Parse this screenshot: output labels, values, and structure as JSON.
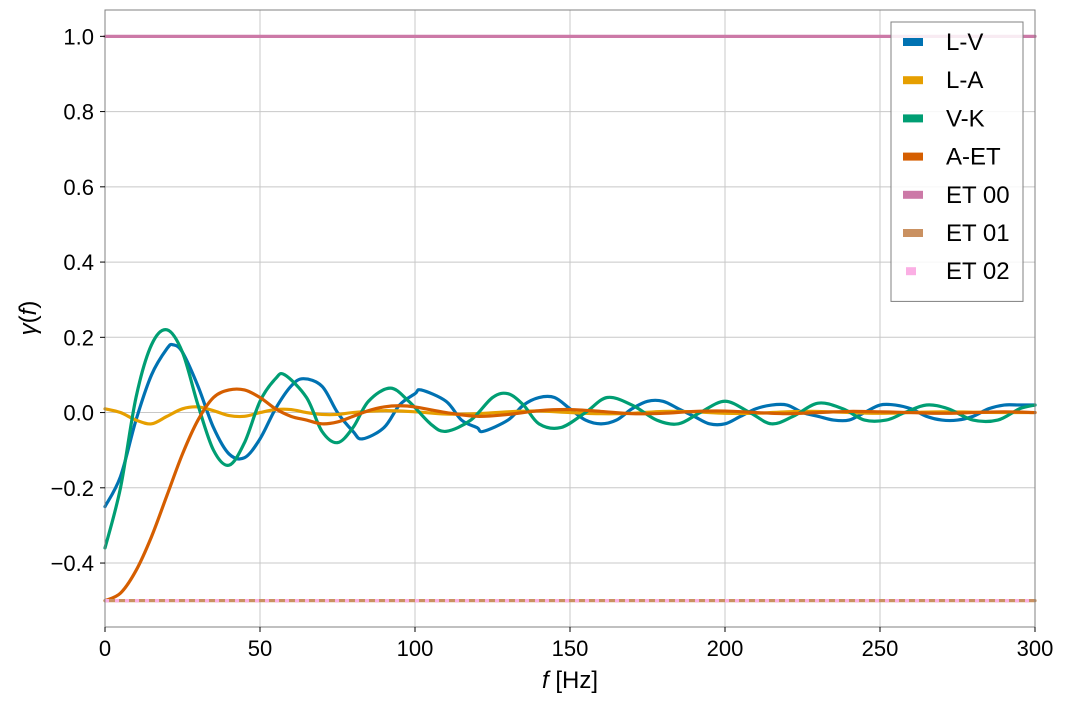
{
  "chart_data": {
    "type": "line",
    "xlabel": "f [Hz]",
    "ylabel": "γ(f)",
    "xlim": [
      0,
      300
    ],
    "ylim": [
      -0.57,
      1.07
    ],
    "x_ticks": [
      0,
      50,
      100,
      150,
      200,
      250,
      300
    ],
    "x_tick_labels": [
      "0",
      "50",
      "100",
      "150",
      "200",
      "250",
      "300"
    ],
    "y_ticks": [
      -0.4,
      -0.2,
      0.0,
      0.2,
      0.4,
      0.6,
      0.8,
      1.0
    ],
    "y_tick_labels": [
      "−0.4",
      "−0.2",
      "0.0",
      "0.2",
      "0.4",
      "0.6",
      "0.8",
      "1.0"
    ],
    "grid": true,
    "legend_position": "top-right",
    "series": [
      {
        "name": "L-V",
        "color": "#0072B2",
        "style": "solid",
        "x": [
          0,
          5,
          10,
          15,
          20,
          22,
          25,
          30,
          35,
          40,
          45,
          50,
          55,
          60,
          64,
          70,
          75,
          80,
          83,
          90,
          95,
          100,
          102,
          110,
          115,
          120,
          122,
          130,
          135,
          140,
          145,
          150,
          155,
          160,
          165,
          170,
          175,
          180,
          185,
          190,
          195,
          200,
          205,
          210,
          215,
          220,
          225,
          230,
          235,
          240,
          245,
          250,
          255,
          260,
          265,
          270,
          275,
          280,
          285,
          290,
          295,
          300
        ],
        "y": [
          -0.25,
          -0.17,
          -0.02,
          0.1,
          0.17,
          0.18,
          0.16,
          0.07,
          -0.04,
          -0.11,
          -0.12,
          -0.07,
          0.01,
          0.07,
          0.09,
          0.07,
          0.0,
          -0.05,
          -0.07,
          -0.04,
          0.02,
          0.05,
          0.06,
          0.03,
          -0.02,
          -0.04,
          -0.05,
          -0.02,
          0.02,
          0.04,
          0.04,
          0.01,
          -0.02,
          -0.03,
          -0.02,
          0.01,
          0.03,
          0.03,
          0.01,
          -0.01,
          -0.03,
          -0.03,
          -0.01,
          0.01,
          0.02,
          0.02,
          0.0,
          -0.01,
          -0.02,
          -0.02,
          0.0,
          0.02,
          0.02,
          0.01,
          -0.01,
          -0.02,
          -0.02,
          -0.01,
          0.01,
          0.02,
          0.02,
          0.02
        ]
      },
      {
        "name": "L-A",
        "color": "#E69F00",
        "style": "solid",
        "x": [
          0,
          5,
          10,
          15,
          20,
          25,
          30,
          35,
          40,
          45,
          50,
          55,
          60,
          65,
          70,
          75,
          80,
          90,
          100,
          110,
          120,
          130,
          140,
          150,
          160,
          170,
          180,
          190,
          200,
          210,
          220,
          230,
          240,
          250,
          260,
          270,
          280,
          290,
          300
        ],
        "y": [
          0.01,
          0.0,
          -0.02,
          -0.03,
          -0.01,
          0.01,
          0.015,
          0.005,
          -0.008,
          -0.01,
          0.0,
          0.008,
          0.008,
          0.0,
          -0.005,
          -0.005,
          0.0,
          0.005,
          0.002,
          -0.004,
          -0.003,
          0.002,
          0.004,
          0.0,
          -0.003,
          -0.002,
          0.003,
          0.002,
          -0.002,
          -0.002,
          0.002,
          0.003,
          0.0,
          -0.002,
          0.0,
          0.002,
          0.001,
          0.0,
          0.0
        ]
      },
      {
        "name": "V-K",
        "color": "#009E73",
        "style": "solid",
        "x": [
          0,
          5,
          10,
          15,
          20,
          25,
          30,
          35,
          40,
          45,
          50,
          55,
          58,
          65,
          70,
          75,
          80,
          85,
          92,
          98,
          105,
          110,
          118,
          125,
          130,
          135,
          140,
          147,
          155,
          162,
          170,
          178,
          185,
          192,
          200,
          208,
          215,
          222,
          230,
          238,
          245,
          252,
          258,
          265,
          272,
          280,
          288,
          295,
          300
        ],
        "y": [
          -0.36,
          -0.2,
          0.04,
          0.18,
          0.22,
          0.16,
          0.02,
          -0.1,
          -0.14,
          -0.08,
          0.03,
          0.09,
          0.1,
          0.04,
          -0.05,
          -0.08,
          -0.04,
          0.03,
          0.065,
          0.03,
          -0.03,
          -0.05,
          -0.02,
          0.04,
          0.05,
          0.02,
          -0.03,
          -0.04,
          0.0,
          0.04,
          0.02,
          -0.02,
          -0.03,
          0.0,
          0.03,
          0.0,
          -0.03,
          -0.01,
          0.025,
          0.01,
          -0.02,
          -0.02,
          0.0,
          0.02,
          0.01,
          -0.02,
          -0.02,
          0.01,
          0.02
        ]
      },
      {
        "name": "A-ET",
        "color": "#D55E00",
        "style": "solid",
        "x": [
          0,
          5,
          10,
          15,
          20,
          25,
          30,
          35,
          40,
          45,
          50,
          55,
          60,
          65,
          70,
          75,
          80,
          85,
          90,
          95,
          100,
          110,
          120,
          130,
          140,
          150,
          160,
          170,
          180,
          190,
          200,
          210,
          220,
          230,
          240,
          250,
          260,
          270,
          280,
          290,
          300
        ],
        "y": [
          -0.5,
          -0.48,
          -0.42,
          -0.33,
          -0.22,
          -0.11,
          -0.02,
          0.04,
          0.06,
          0.06,
          0.04,
          0.01,
          -0.01,
          -0.02,
          -0.03,
          -0.025,
          -0.01,
          0.005,
          0.015,
          0.018,
          0.015,
          0.0,
          -0.01,
          -0.005,
          0.005,
          0.008,
          0.003,
          -0.003,
          -0.002,
          0.003,
          0.004,
          0.0,
          -0.003,
          0.0,
          0.003,
          0.002,
          0.0,
          -0.002,
          0.0,
          0.002,
          0.0
        ]
      },
      {
        "name": "ET 00",
        "color": "#CC79A7",
        "style": "solid",
        "x": [
          0,
          300
        ],
        "y": [
          1.0,
          1.0
        ]
      },
      {
        "name": "ET 01",
        "color": "#CA9161",
        "style": "solid",
        "x": [
          0,
          300
        ],
        "y": [
          -0.5,
          -0.5
        ]
      },
      {
        "name": "ET 02",
        "color": "#FBAFE4",
        "style": "dotted",
        "x": [
          0,
          300
        ],
        "y": [
          -0.5,
          -0.5
        ]
      }
    ]
  }
}
